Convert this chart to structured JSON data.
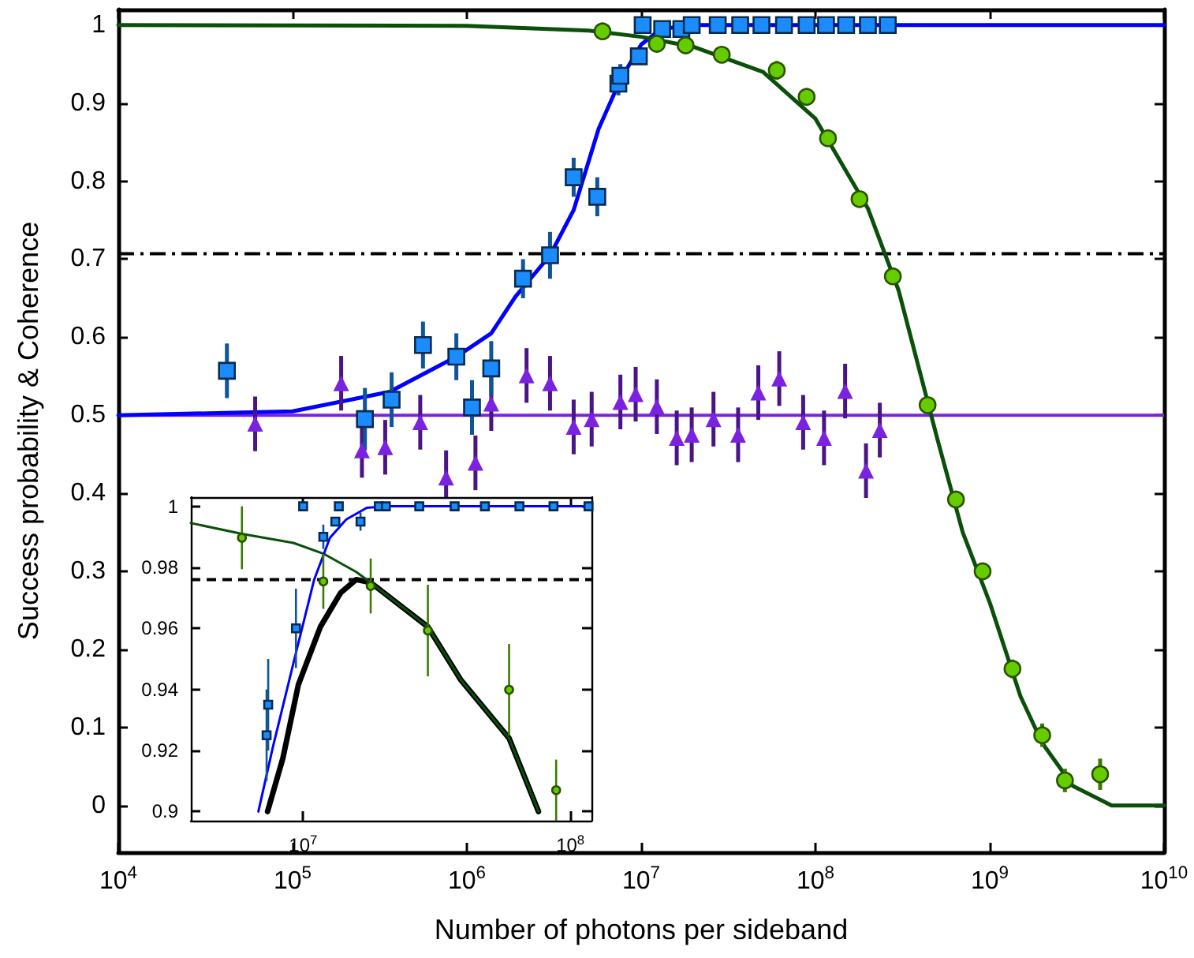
{
  "chart_data": [
    {
      "type": "scatter",
      "xlabel": "Number of photons per sideband",
      "ylabel": "Success probability & Coherence",
      "log": "x",
      "xlim": [
        10000,
        10000000000
      ],
      "ylim": [
        -0.06,
        1.02
      ],
      "xticks": [
        {
          "value": 10000,
          "label": "10$^{4}$"
        },
        {
          "value": 100000,
          "label": "10$^{5}$"
        },
        {
          "value": 1000000,
          "label": "10$^{6}$"
        },
        {
          "value": 10000000,
          "label": "10$^{7}$"
        },
        {
          "value": 100000000,
          "label": "10$^{8}$"
        },
        {
          "value": 1000000000,
          "label": "10$^{9}$"
        },
        {
          "value": 10000000000,
          "label": "10$^{10}$"
        }
      ],
      "yticks": [
        0,
        0.1,
        0.2,
        0.3,
        0.4,
        0.5,
        0.6,
        0.7,
        0.8,
        0.9,
        1
      ],
      "ref_lines": [
        {
          "axis": "y",
          "value": 0.707,
          "line_style": "dashdot",
          "color": "#000000"
        },
        {
          "axis": "y",
          "value": 0.5,
          "line_style": "solid",
          "color": "#7b22e0"
        }
      ],
      "series": [
        {
          "type": "line",
          "marker": "none",
          "color": "#0000ff",
          "x": [
            10000,
            100000,
            360000,
            870000,
            1380000,
            1900000,
            3000000,
            4100000,
            5700000,
            7600000,
            10000000,
            13000000,
            20000000,
            10000000000
          ],
          "values": [
            0.5,
            0.505,
            0.53,
            0.575,
            0.605,
            0.652,
            0.705,
            0.763,
            0.867,
            0.93,
            0.975,
            0.995,
            1,
            1
          ]
        },
        {
          "type": "line",
          "marker": "none",
          "color": "#0a500a",
          "x": [
            10000,
            1000000,
            5000000,
            10000000,
            20000000,
            50000000,
            100000000,
            200000000,
            300000000,
            500000000,
            700000000,
            1000000000,
            1500000000,
            2000000000,
            3000000000,
            5000000000,
            10000000000
          ],
          "values": [
            1,
            0.999,
            0.993,
            0.985,
            0.972,
            0.94,
            0.88,
            0.765,
            0.66,
            0.47,
            0.35,
            0.26,
            0.14,
            0.08,
            0.025,
            0,
            0
          ]
        },
        {
          "marker": "triangle",
          "color": "#7b22e0",
          "x": [
            61000,
            190000,
            250000,
            340000,
            540000,
            760000,
            1120000,
            1380000,
            2200000,
            3000000,
            4100000,
            5200000,
            7600000,
            9300000,
            12300000,
            16000000,
            19500000,
            26000000,
            36000000,
            47000000,
            62000000,
            85000000,
            112000000,
            148000000,
            195000000,
            234000000
          ],
          "values": [
            0.489,
            0.541,
            0.455,
            0.459,
            0.491,
            0.42,
            0.439,
            0.515,
            0.551,
            0.541,
            0.485,
            0.495,
            0.517,
            0.527,
            0.511,
            0.471,
            0.475,
            0.495,
            0.475,
            0.529,
            0.547,
            0.491,
            0.471,
            0.531,
            0.429,
            0.481
          ],
          "errors": [
            0.035,
            0.035,
            0.035,
            0.035,
            0.035,
            0.035,
            0.035,
            0.035,
            0.035,
            0.035,
            0.035,
            0.035,
            0.035,
            0.035,
            0.035,
            0.035,
            0.035,
            0.035,
            0.035,
            0.035,
            0.035,
            0.035,
            0.035,
            0.035,
            0.035,
            0.035
          ]
        },
        {
          "marker": "square",
          "color": "#1a8cff",
          "x": [
            42000,
            260000,
            370000,
            560000,
            870000,
            1070000,
            1380000,
            2100000,
            3000000,
            4100000,
            5600000,
            7400000,
            7600000,
            9700000,
            10200000,
            13200000,
            17000000,
            19500000,
            27500000,
            37000000,
            49000000,
            66000000,
            89000000,
            115000000,
            150000000,
            200000000,
            260000000
          ],
          "values": [
            0.557,
            0.495,
            0.52,
            0.59,
            0.575,
            0.51,
            0.56,
            0.675,
            0.705,
            0.805,
            0.78,
            0.925,
            0.935,
            0.96,
            1,
            0.995,
            0.995,
            1,
            1,
            1,
            1,
            1,
            1,
            1,
            1,
            1,
            1
          ],
          "errors": [
            0.035,
            0.04,
            0.035,
            0.03,
            0.03,
            0.035,
            0.035,
            0.025,
            0.03,
            0.025,
            0.025,
            0.015,
            0.015,
            0.01,
            null,
            null,
            null,
            null,
            null,
            null,
            null,
            null,
            null,
            null,
            null,
            null,
            null
          ]
        },
        {
          "marker": "circle",
          "color": "#66cc00",
          "x": [
            6000000,
            12300000,
            18000000,
            29000000,
            60000000,
            89000000,
            118000000,
            179000000,
            278000000,
            440000000,
            640000000,
            910000000,
            1350000000,
            2000000000,
            2700000000,
            4300000000
          ],
          "values": [
            0.992,
            0.976,
            0.974,
            0.962,
            0.942,
            0.908,
            0.855,
            0.777,
            0.678,
            0.513,
            0.392,
            0.3,
            0.175,
            0.09,
            0.032,
            0.04
          ],
          "errors": [
            null,
            null,
            null,
            null,
            0.012,
            null,
            null,
            null,
            null,
            null,
            null,
            null,
            0.012,
            0.015,
            0.015,
            0.02
          ]
        }
      ]
    },
    {
      "type": "scatter",
      "log": "x",
      "xlim": [
        3800000,
        120000000
      ],
      "ylim": [
        0.897,
        1.003
      ],
      "xticks": [
        {
          "value": 10000000,
          "label": "10$^{7}$"
        },
        {
          "value": 100000000,
          "label": "10$^{8}$"
        }
      ],
      "yticks": [
        0.9,
        0.92,
        0.94,
        0.96,
        0.98,
        1
      ],
      "ref_lines": [
        {
          "axis": "y",
          "value": 0.976,
          "line_style": "dashed",
          "color": "#000000"
        }
      ],
      "series": [
        {
          "type": "line",
          "marker": "none",
          "color": "#000000",
          "x": [
            7360000,
            8400000,
            9600000,
            11600000,
            13800000,
            15800000,
            17900000,
            29300000,
            39000000,
            59000000,
            76000000
          ],
          "values": [
            0.9,
            0.9175,
            0.9416,
            0.9605,
            0.9716,
            0.976,
            0.975,
            0.9605,
            0.943,
            0.924,
            0.9
          ]
        },
        {
          "type": "line",
          "marker": "none",
          "color": "#0a500a",
          "x": [
            3800000,
            5900000,
            9200000,
            11900000,
            15800000,
            17900000,
            29300000,
            39000000,
            59000000,
            76000000
          ],
          "values": [
            0.9945,
            0.991,
            0.988,
            0.9845,
            0.9785,
            0.975,
            0.9605,
            0.943,
            0.924,
            0.9
          ]
        },
        {
          "type": "line",
          "marker": "none",
          "color": "#0000ff",
          "x": [
            6800000,
            7700000,
            9400000,
            11000000,
            12600000,
            14500000,
            17300000,
            20700000,
            117000000
          ],
          "values": [
            0.9,
            0.921,
            0.952,
            0.976,
            0.9897,
            0.9957,
            0.9995,
            1,
            1
          ]
        },
        {
          "marker": "square",
          "color": "#1a8cff",
          "x": [
            7300000,
            7400000,
            9400000,
            10000000,
            11900000,
            13200000,
            13600000,
            16400000,
            19200000,
            20400000,
            27200000,
            36900000,
            47900000,
            64500000,
            86500000,
            117000000
          ],
          "values": [
            0.925,
            0.935,
            0.96,
            1,
            0.99,
            0.995,
            1,
            0.995,
            1,
            1,
            1,
            1,
            1,
            1,
            1,
            1
          ],
          "errors": [
            0.015,
            0.015,
            0.013,
            null,
            0.004,
            null,
            null,
            0.003,
            null,
            null,
            null,
            null,
            null,
            null,
            null,
            null
          ]
        },
        {
          "marker": "circle",
          "color": "#66cc00",
          "x": [
            5900000,
            11900000,
            17900000,
            29300000,
            59000000,
            88500000
          ],
          "values": [
            0.9897,
            0.9754,
            0.9739,
            0.9593,
            0.9399,
            0.907
          ],
          "errors": [
            0.0103,
            0.009,
            0.009,
            0.015,
            0.015,
            0.01
          ]
        }
      ]
    }
  ]
}
